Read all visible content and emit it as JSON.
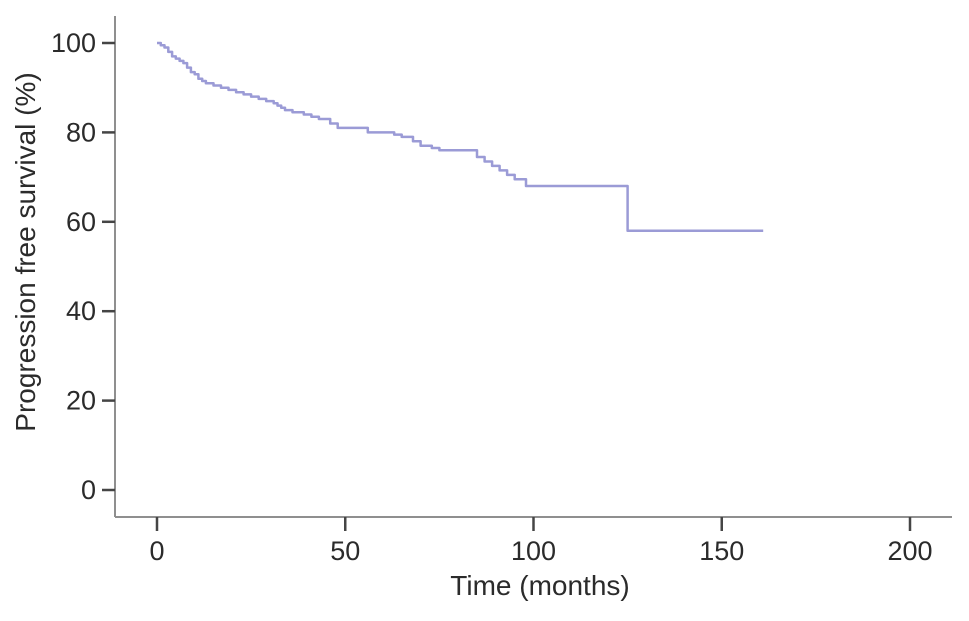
{
  "figure": {
    "background": "#ffffff",
    "description": "Kaplan-Meier style progression free survival curve, single series, no legend, no title"
  },
  "chart_data": {
    "type": "line",
    "subtype": "kaplan-meier-step",
    "title": "",
    "xlabel": "Time (months)",
    "ylabel": "Progression free survival (%)",
    "xlim": [
      0,
      200
    ],
    "ylim": [
      0,
      100
    ],
    "x_ticks": [
      0,
      50,
      100,
      150,
      200
    ],
    "y_ticks": [
      0,
      20,
      40,
      60,
      80,
      100
    ],
    "grid": false,
    "legend": false,
    "line_color": "#9b9bd6",
    "axis_color": "#8f8f8f",
    "tick_color": "#454545",
    "text_color": "#2b2b2b",
    "series": [
      {
        "name": "Progression free survival",
        "step_points": [
          [
            0,
            100
          ],
          [
            1,
            99.5
          ],
          [
            2,
            99
          ],
          [
            3,
            98
          ],
          [
            4,
            97
          ],
          [
            5,
            96.5
          ],
          [
            6,
            96
          ],
          [
            7,
            95.5
          ],
          [
            8,
            94.5
          ],
          [
            9,
            93.5
          ],
          [
            10,
            93
          ],
          [
            11,
            92
          ],
          [
            12,
            91.5
          ],
          [
            13,
            91
          ],
          [
            15,
            90.5
          ],
          [
            17,
            90
          ],
          [
            19,
            89.5
          ],
          [
            21,
            89
          ],
          [
            23,
            88.5
          ],
          [
            25,
            88
          ],
          [
            27,
            87.5
          ],
          [
            29,
            87
          ],
          [
            31,
            86.5
          ],
          [
            32,
            86
          ],
          [
            33,
            85.5
          ],
          [
            34,
            85
          ],
          [
            36,
            84.5
          ],
          [
            39,
            84
          ],
          [
            41,
            83.5
          ],
          [
            43,
            83
          ],
          [
            46,
            82
          ],
          [
            48,
            81
          ],
          [
            56,
            80
          ],
          [
            63,
            79.5
          ],
          [
            65,
            79
          ],
          [
            68,
            78
          ],
          [
            70,
            77
          ],
          [
            73,
            76.5
          ],
          [
            75,
            76
          ],
          [
            85,
            74.5
          ],
          [
            87,
            73.5
          ],
          [
            89,
            72.5
          ],
          [
            91,
            71.5
          ],
          [
            93,
            70.5
          ],
          [
            95,
            69.5
          ],
          [
            98,
            68
          ],
          [
            125,
            58
          ]
        ],
        "end_time": 161
      }
    ]
  }
}
